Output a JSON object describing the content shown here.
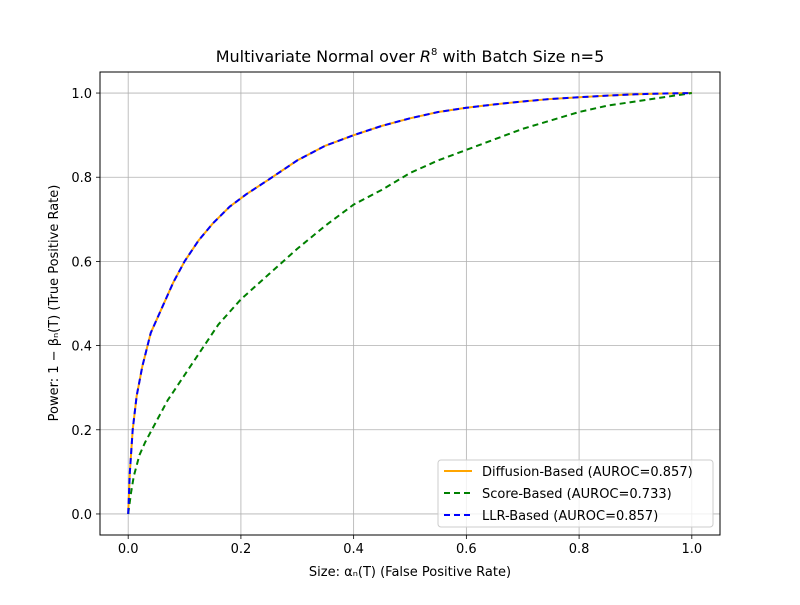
{
  "chart_data": {
    "type": "line",
    "title": "Multivariate Normal over R^8 with Batch Size n=5",
    "title_parts": {
      "prefix": "Multivariate Normal over ",
      "base": "R",
      "sup": "8",
      "suffix": " with Batch Size n=5"
    },
    "xlabel": "Size: αₙ(T)     (False Positive Rate)",
    "ylabel": "Power: 1 − βₙ(T)     (True Positive Rate)",
    "xlim": [
      -0.05,
      1.05
    ],
    "ylim": [
      -0.05,
      1.05
    ],
    "x_ticks": [
      0.0,
      0.2,
      0.4,
      0.6,
      0.8,
      1.0
    ],
    "y_ticks": [
      0.0,
      0.2,
      0.4,
      0.6,
      0.8,
      1.0
    ],
    "x_tick_labels": [
      "0.0",
      "0.2",
      "0.4",
      "0.6",
      "0.8",
      "1.0"
    ],
    "y_tick_labels": [
      "0.0",
      "0.2",
      "0.4",
      "0.6",
      "0.8",
      "1.0"
    ],
    "grid": true,
    "legend_position": "lower-right",
    "series": [
      {
        "name": "Diffusion-Based (AUROC=0.857)",
        "color": "#ffa500",
        "style": "solid",
        "x": [
          0.0,
          0.003,
          0.008,
          0.015,
          0.025,
          0.04,
          0.06,
          0.08,
          0.1,
          0.125,
          0.15,
          0.18,
          0.21,
          0.25,
          0.3,
          0.35,
          0.4,
          0.45,
          0.5,
          0.55,
          0.6,
          0.65,
          0.7,
          0.75,
          0.8,
          0.85,
          0.9,
          0.95,
          1.0
        ],
        "y": [
          0.0,
          0.1,
          0.2,
          0.28,
          0.35,
          0.43,
          0.49,
          0.55,
          0.6,
          0.65,
          0.69,
          0.73,
          0.76,
          0.795,
          0.84,
          0.875,
          0.9,
          0.922,
          0.94,
          0.955,
          0.965,
          0.973,
          0.98,
          0.986,
          0.99,
          0.994,
          0.997,
          0.999,
          1.0
        ]
      },
      {
        "name": "Score-Based (AUROC=0.733)",
        "color": "#008000",
        "style": "dashed",
        "x": [
          0.0,
          0.005,
          0.01,
          0.02,
          0.03,
          0.05,
          0.07,
          0.1,
          0.13,
          0.16,
          0.2,
          0.25,
          0.3,
          0.35,
          0.4,
          0.45,
          0.5,
          0.55,
          0.6,
          0.65,
          0.7,
          0.75,
          0.8,
          0.85,
          0.9,
          0.95,
          1.0
        ],
        "y": [
          0.0,
          0.05,
          0.09,
          0.14,
          0.17,
          0.22,
          0.27,
          0.33,
          0.39,
          0.45,
          0.51,
          0.57,
          0.63,
          0.685,
          0.735,
          0.77,
          0.81,
          0.84,
          0.865,
          0.89,
          0.915,
          0.935,
          0.955,
          0.97,
          0.98,
          0.99,
          1.0
        ]
      },
      {
        "name": "LLR-Based (AUROC=0.857)",
        "color": "#0000ff",
        "style": "dashed",
        "x": [
          0.0,
          0.003,
          0.008,
          0.015,
          0.025,
          0.04,
          0.06,
          0.08,
          0.1,
          0.125,
          0.15,
          0.18,
          0.21,
          0.25,
          0.3,
          0.35,
          0.4,
          0.45,
          0.5,
          0.55,
          0.6,
          0.65,
          0.7,
          0.75,
          0.8,
          0.85,
          0.9,
          0.95,
          1.0
        ],
        "y": [
          0.0,
          0.1,
          0.2,
          0.28,
          0.35,
          0.43,
          0.49,
          0.55,
          0.6,
          0.65,
          0.69,
          0.73,
          0.76,
          0.795,
          0.84,
          0.875,
          0.9,
          0.922,
          0.94,
          0.955,
          0.965,
          0.973,
          0.98,
          0.986,
          0.99,
          0.994,
          0.997,
          0.999,
          1.0
        ]
      }
    ]
  }
}
